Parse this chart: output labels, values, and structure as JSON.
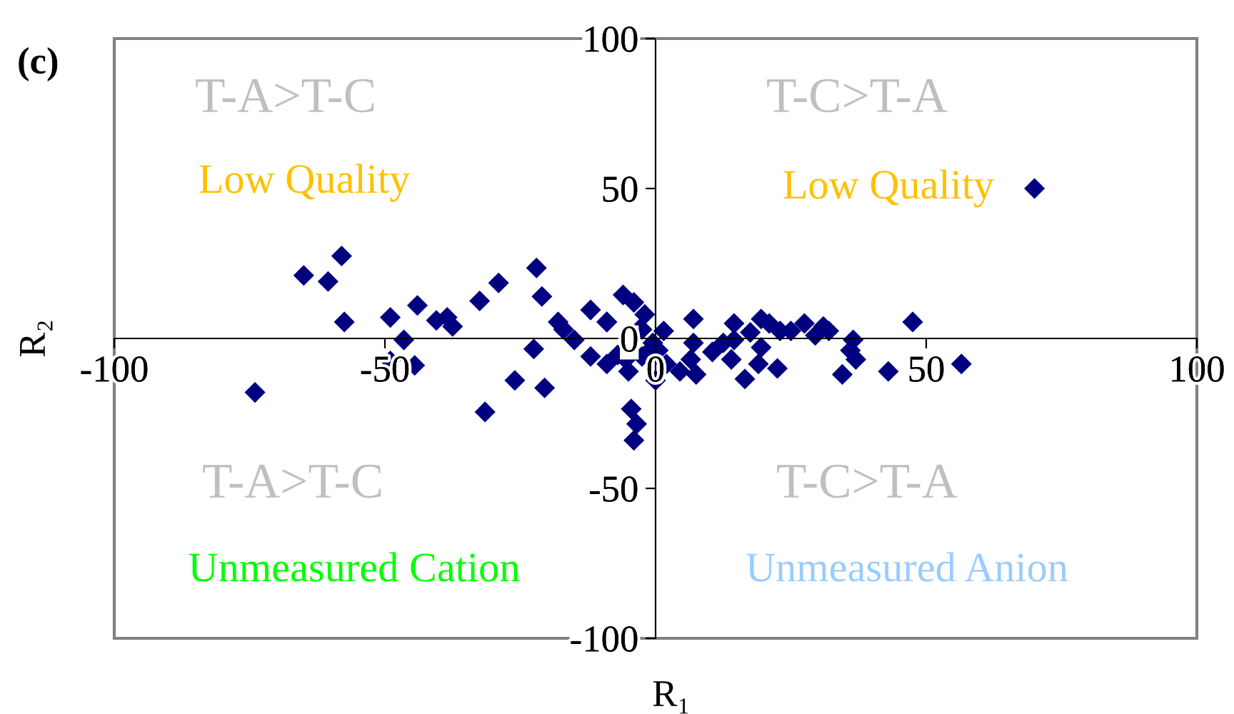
{
  "chart_data": {
    "type": "scatter",
    "xlabel": "R₁",
    "ylabel": "R₂",
    "annotations": [
      "(c)",
      "T-A>T-C",
      "T-C>T-A",
      "Low Quality",
      "Low Quality",
      "T-A>T-C",
      "T-C>T-A",
      "Unmeasured Cation",
      "Unmeasured Anion"
    ],
    "xlim": [
      -100,
      100
    ],
    "ylim": [
      -100,
      100
    ],
    "xticks": [
      -100,
      -50,
      0,
      50,
      100
    ],
    "yticks": [
      -100,
      -50,
      0,
      50,
      100
    ],
    "grid": false,
    "marker": "diamond",
    "series": [
      {
        "color": "#000080",
        "x": [
          -58,
          -65,
          -60.5,
          -57.5,
          -49,
          -44,
          -46.5,
          -49,
          -44.5,
          -74,
          -40.5,
          -38.5,
          -37.5,
          -32.5,
          -29,
          -22,
          -21,
          -22.5,
          -26,
          -20.5,
          -31.5,
          -18,
          -17,
          -15,
          -12,
          -9,
          -12,
          -9,
          -6,
          -4,
          -2,
          -3,
          -5,
          -4.5,
          -3.5,
          -4,
          0,
          -7,
          -2.5,
          -0.5,
          1.5,
          -5.5,
          -9,
          -2.5,
          -0.5,
          0.5,
          2,
          4.5,
          7,
          7,
          6.5,
          7.5,
          10.5,
          12.5,
          14.5,
          14.5,
          14,
          16.5,
          17.5,
          19.5,
          19,
          19.5,
          22.5,
          21,
          23,
          25,
          27.5,
          29.5,
          31,
          32,
          36.5,
          36,
          37,
          34.5,
          43,
          47.5,
          56.5,
          70
        ],
        "values": [
          27.5,
          21,
          19,
          5.5,
          7,
          11,
          -0.5,
          -7.5,
          -9,
          -18,
          6,
          7,
          4,
          12.5,
          18.5,
          23.5,
          14,
          -3.5,
          -14,
          -16.5,
          -24.5,
          5.5,
          3,
          -0.5,
          9.5,
          5.5,
          -6,
          -8.5,
          14.5,
          12,
          8,
          3,
          -11,
          -23.5,
          -28.5,
          -34,
          -14,
          -5.5,
          -6,
          -3,
          2.5,
          -7,
          5.5,
          3,
          -1.5,
          -4,
          -8.5,
          -11,
          6.5,
          -1.5,
          -7,
          -12,
          -4.5,
          -1.5,
          5,
          -0.5,
          -7,
          -13.5,
          2,
          6.5,
          -8.5,
          -3,
          -10,
          5,
          2.5,
          2.5,
          5,
          1,
          4,
          2.5,
          -0.5,
          -4,
          -7,
          -12,
          -11,
          5.5,
          -8.5,
          50
        ]
      }
    ]
  }
}
